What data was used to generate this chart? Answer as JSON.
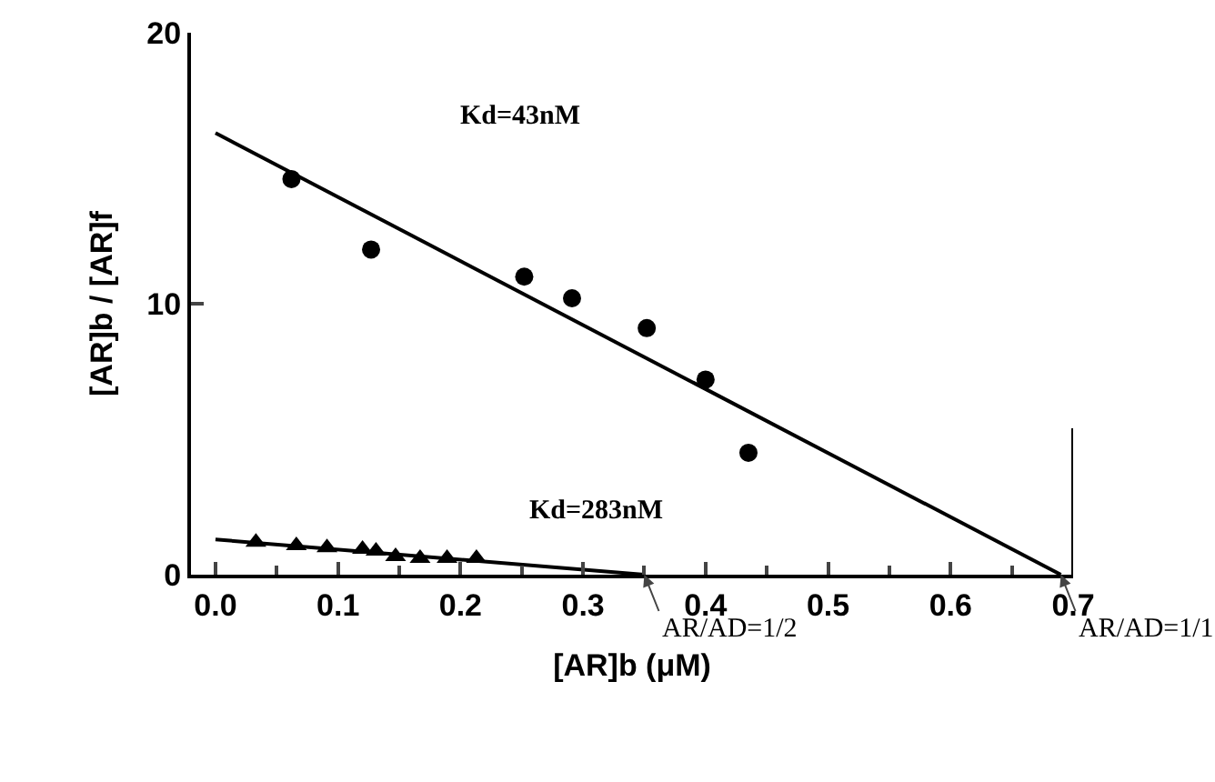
{
  "chart_data": {
    "type": "scatter",
    "xlabel": "[AR]b (μM)",
    "ylabel": "[AR]b / [AR]f",
    "xlim": [
      -0.02,
      0.7
    ],
    "ylim": [
      0,
      20
    ],
    "xticks": [
      {
        "value": 0,
        "label": "0.0"
      },
      0.1,
      0.2,
      0.3,
      0.4,
      0.5,
      0.6,
      0.7
    ],
    "yticks": [
      0,
      10,
      20
    ],
    "grid": false,
    "series": [
      {
        "type": "scatter",
        "marker": "circle",
        "color": "#000000",
        "x": [
          0.062,
          0.127,
          0.252,
          0.291,
          0.352,
          0.4,
          0.435
        ],
        "values": [
          14.6,
          12.0,
          11.0,
          10.2,
          9.1,
          7.2,
          4.5
        ]
      },
      {
        "type": "scatter",
        "marker": "triangle",
        "color": "#000000",
        "x": [
          0.033,
          0.066,
          0.091,
          0.12,
          0.131,
          0.147,
          0.167,
          0.189,
          0.213
        ],
        "values": [
          1.2,
          1.07,
          1.0,
          0.94,
          0.87,
          0.67,
          0.6,
          0.6,
          0.6
        ]
      },
      {
        "type": "line",
        "line_style": "solid",
        "color": "#000000",
        "x": [
          0,
          0.69
        ],
        "values": [
          16.3,
          0
        ]
      },
      {
        "type": "line",
        "line_style": "solid",
        "color": "#000000",
        "x": [
          0,
          0.35
        ],
        "values": [
          1.3,
          0
        ]
      }
    ],
    "annotations": [
      "Kd=43nM",
      "Kd=283nM",
      {
        "text": "AR/AD=1/2",
        "x": 0.35,
        "y": 0
      },
      {
        "text": "AR/AD=1/1",
        "x": 0.69,
        "y": 0
      }
    ]
  }
}
